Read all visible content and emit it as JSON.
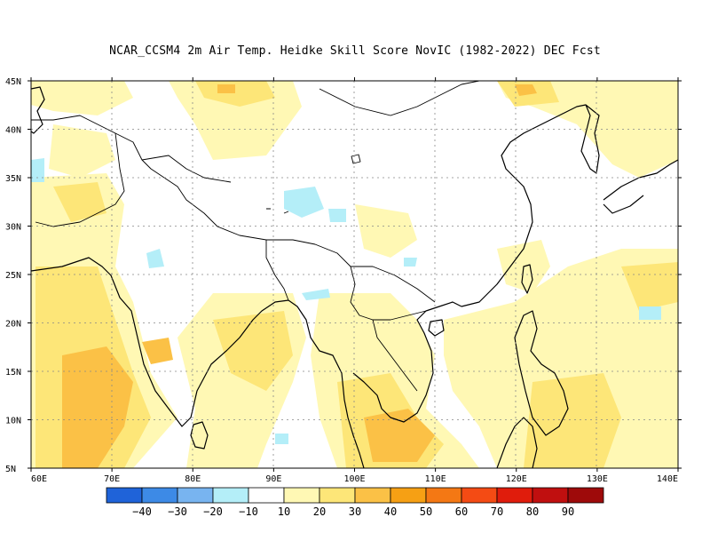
{
  "title": "NCAR_CCSM4  2m Air Temp. Heidke Skill Score NovIC (1982-2022) DEC Fcst",
  "map": {
    "lon_range": [
      60,
      140
    ],
    "lat_range": [
      5,
      45
    ],
    "lon_ticks": [
      "60E",
      "70E",
      "80E",
      "90E",
      "100E",
      "110E",
      "120E",
      "130E",
      "140E"
    ],
    "lat_ticks": [
      "45N",
      "40N",
      "35N",
      "30N",
      "25N",
      "20N",
      "15N",
      "10N",
      "5N"
    ],
    "grid": true,
    "background_color": "#ffffff"
  },
  "colorbar": {
    "colors": [
      "#1f63d9",
      "#3d8ae6",
      "#78b4f0",
      "#b4eef8",
      "#ffffff",
      "#fff8b4",
      "#fde678",
      "#fbc146",
      "#f6a014",
      "#f47814",
      "#f44b14",
      "#e01c0c",
      "#c00f0f",
      "#9e0a0a"
    ],
    "labels": [
      "−40",
      "−30",
      "−20",
      "−10",
      "10",
      "20",
      "30",
      "40",
      "50",
      "60",
      "70",
      "80",
      "90"
    ]
  },
  "legend_colors": {
    "land_outline": "#000000",
    "positive_light": "#fff8b4",
    "positive_mid": "#fde678",
    "positive_high": "#fbc146",
    "positive_higher": "#f6a014",
    "negative_light": "#b4eef8"
  }
}
